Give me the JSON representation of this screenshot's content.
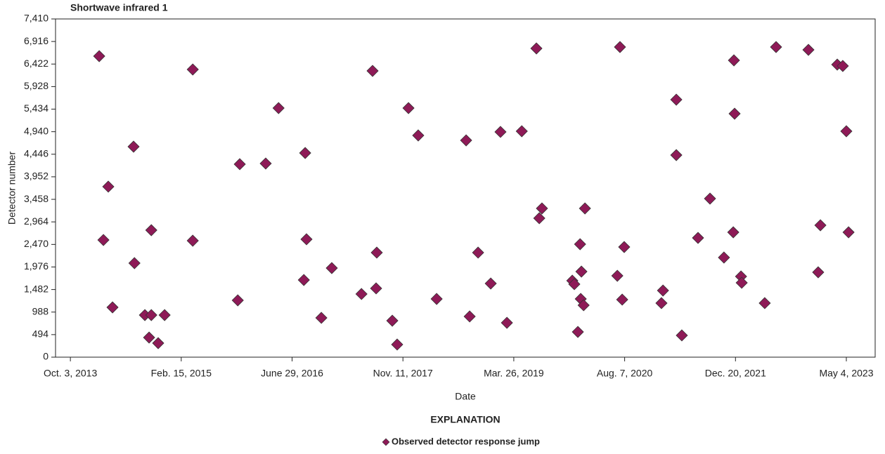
{
  "chart_data": {
    "type": "scatter",
    "title": "Shortwave infrared 1",
    "x_label": "Date",
    "y_label": "Detector number",
    "legend_title": "EXPLANATION",
    "xlim": [
      "2013-07-28",
      "2023-09-11"
    ],
    "xticks": [
      {
        "value": "2013-10-03",
        "label": "Oct. 3, 2013"
      },
      {
        "value": "2015-02-15",
        "label": "Feb. 15, 2015"
      },
      {
        "value": "2016-06-29",
        "label": "June 29, 2016"
      },
      {
        "value": "2017-11-11",
        "label": "Nov. 11, 2017"
      },
      {
        "value": "2019-03-26",
        "label": "Mar. 26, 2019"
      },
      {
        "value": "2020-08-07",
        "label": "Aug. 7, 2020"
      },
      {
        "value": "2021-12-20",
        "label": "Dec. 20, 2021"
      },
      {
        "value": "2023-05-04",
        "label": "May 4, 2023"
      }
    ],
    "ylim": [
      0,
      7410
    ],
    "yticks": [
      0,
      494,
      988,
      {
        "value": 1482,
        "label": "1,482"
      },
      {
        "value": 1976,
        "label": "1,976"
      },
      {
        "value": 2470,
        "label": "2,470"
      },
      {
        "value": 2964,
        "label": "2,964"
      },
      {
        "value": 3458,
        "label": "3,458"
      },
      {
        "value": 3952,
        "label": "3,952"
      },
      {
        "value": 4446,
        "label": "4,446"
      },
      {
        "value": 4940,
        "label": "4,940"
      },
      {
        "value": 5434,
        "label": "5,434"
      },
      {
        "value": 5928,
        "label": "5,928"
      },
      {
        "value": 6422,
        "label": "6,422"
      },
      {
        "value": 6916,
        "label": "6,916"
      },
      {
        "value": 7410,
        "label": "7,410"
      }
    ],
    "x": [
      "2014-02-10",
      "2014-03-01",
      "2014-03-23",
      "2014-04-11",
      "2014-07-15",
      "2014-07-19",
      "2014-09-04",
      "2014-09-23",
      "2014-10-03",
      "2014-10-03",
      "2014-11-03",
      "2014-12-02",
      "2015-04-08",
      "2015-04-08",
      "2015-10-28",
      "2015-11-06",
      "2016-03-02",
      "2016-04-29",
      "2016-08-21",
      "2016-08-27",
      "2016-09-02",
      "2016-11-08",
      "2016-12-25",
      "2017-05-08",
      "2017-06-27",
      "2017-07-13",
      "2017-07-16",
      "2017-09-24",
      "2017-10-16",
      "2017-12-06",
      "2018-01-19",
      "2018-04-12",
      "2018-08-23",
      "2018-09-08",
      "2018-10-16",
      "2018-12-12",
      "2019-01-25",
      "2019-02-23",
      "2019-05-01",
      "2019-07-06",
      "2019-07-19",
      "2019-07-31",
      "2019-12-15",
      "2019-12-24",
      "2020-01-09",
      "2020-01-19",
      "2020-01-22",
      "2020-01-25",
      "2020-02-04",
      "2020-02-10",
      "2020-07-05",
      "2020-07-17",
      "2020-07-27",
      "2020-08-05",
      "2021-01-20",
      "2021-01-27",
      "2021-03-28",
      "2021-03-28",
      "2021-04-22",
      "2021-07-04",
      "2021-08-27",
      "2021-10-29",
      "2021-12-10",
      "2021-12-13",
      "2021-12-16",
      "2022-01-14",
      "2022-01-17",
      "2022-05-01",
      "2022-06-21",
      "2022-11-14",
      "2022-12-28",
      "2023-01-07",
      "2023-03-24",
      "2023-04-18",
      "2023-05-04",
      "2023-05-14"
    ],
    "series": [
      {
        "name": "Observed detector response jump",
        "color": "#8e1a57",
        "values": [
          6595,
          2567,
          3736,
          1091,
          4612,
          2060,
          922,
          430,
          2782,
          922,
          307,
          922,
          6303,
          2552,
          1245,
          4228,
          4243,
          5457,
          1691,
          4473,
          2583,
          861,
          1952,
          1384,
          6272,
          1507,
          2291,
          799,
          277,
          5457,
          4858,
          1276,
          4750,
          892,
          2291,
          1614,
          4935,
          753,
          4950,
          6764,
          3044,
          3259,
          1676,
          1599,
          553,
          2475,
          1276,
          1875,
          1138,
          3259,
          1783,
          6795,
          1261,
          2413,
          1184,
          1460,
          5642,
          4427,
          477,
          2613,
          3474,
          2183,
          2736,
          6503,
          5334,
          1768,
          1630,
          1184,
          6795,
          6733,
          1860,
          2890,
          6410,
          6380,
          4950,
          2736
        ]
      }
    ]
  }
}
